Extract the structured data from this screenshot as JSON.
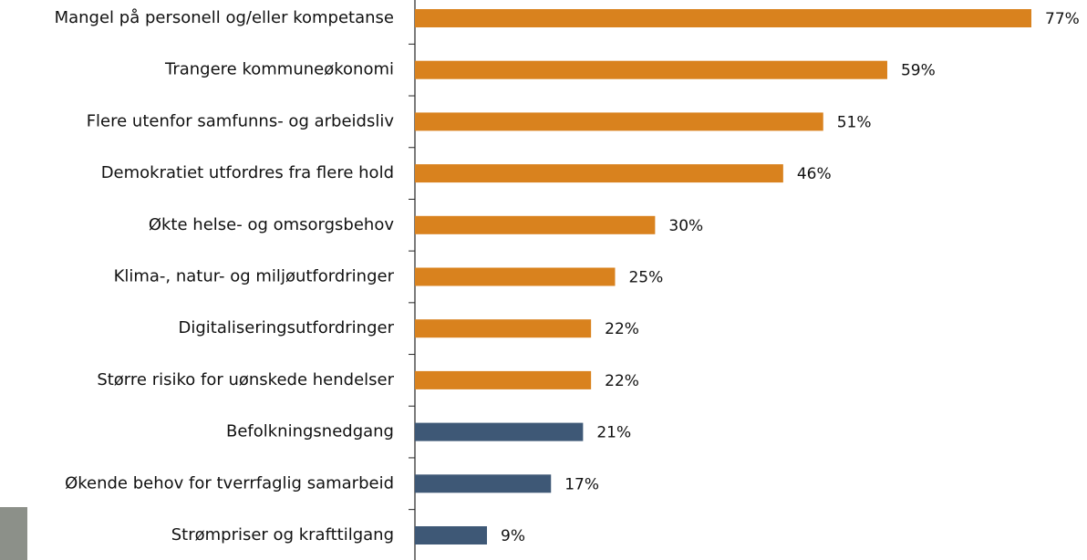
{
  "chart_data": {
    "type": "hbar",
    "categories": [
      "Mangel på personell og/eller kompetanse",
      "Trangere kommuneøkonomi",
      "Flere utenfor samfunns- og arbeidsliv",
      "Demokratiet utfordres fra flere hold",
      "Økte helse- og omsorgsbehov",
      "Klima-, natur- og miljøutfordringer",
      "Digitaliseringsutfordringer",
      "Større risiko for uønskede hendelser",
      "Befolkningsnedgang",
      "Økende behov for tverrfaglig samarbeid",
      "Strømpriser og krafttilgang"
    ],
    "values": [
      77,
      59,
      51,
      46,
      30,
      25,
      22,
      22,
      21,
      17,
      9
    ],
    "value_labels": [
      "77%",
      "59%",
      "51%",
      "46%",
      "30%",
      "25%",
      "22%",
      "22%",
      "21%",
      "17%",
      "9%"
    ],
    "colors": [
      "#d9821e",
      "#d9821e",
      "#d9821e",
      "#d9821e",
      "#d9821e",
      "#d9821e",
      "#d9821e",
      "#d9821e",
      "#3e5876",
      "#3e5876",
      "#3e5876"
    ]
  }
}
